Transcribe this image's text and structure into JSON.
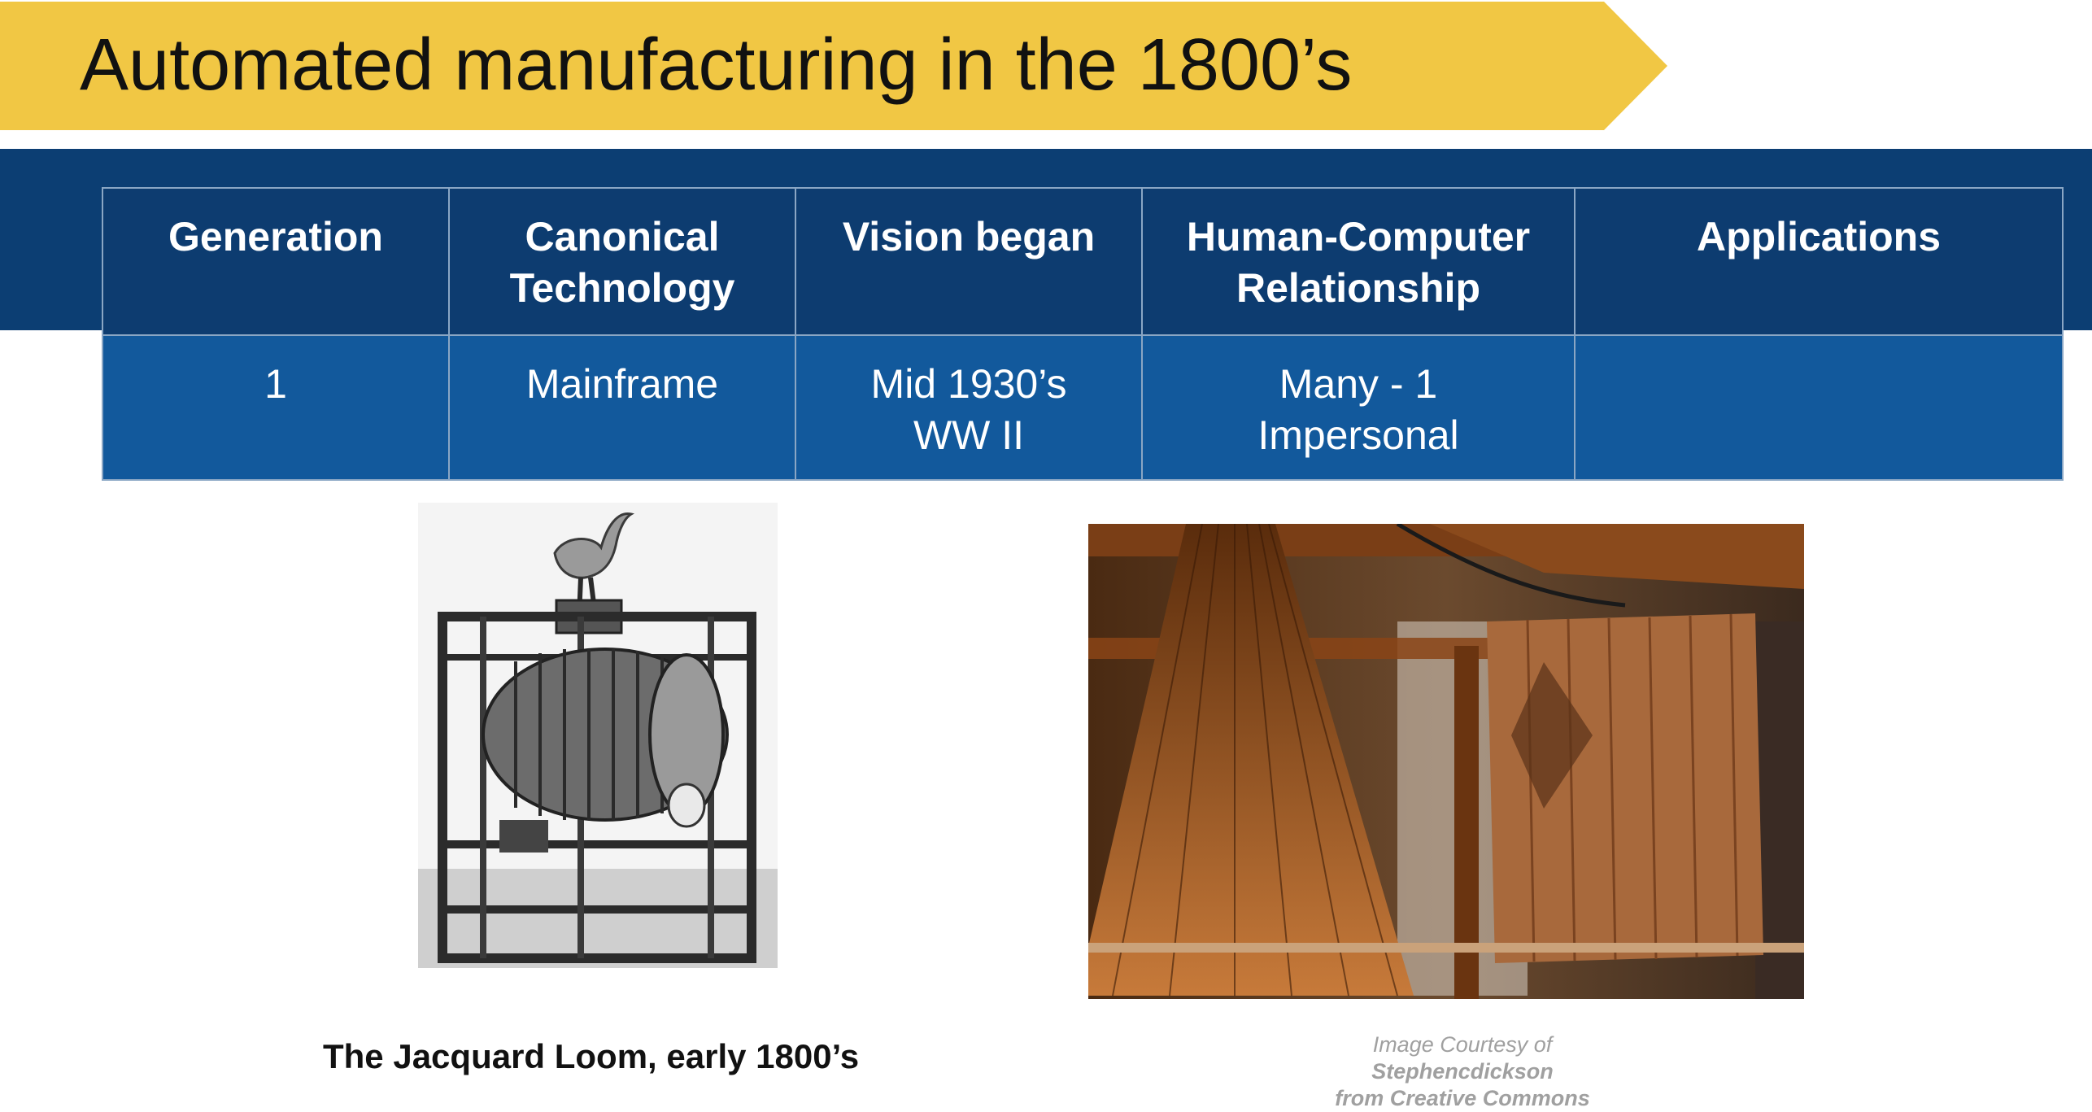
{
  "slide": {
    "title": "Automated manufacturing in the 1800’s"
  },
  "table": {
    "headers": [
      {
        "lines": [
          "Generation"
        ]
      },
      {
        "lines": [
          "Canonical",
          "Technology"
        ]
      },
      {
        "lines": [
          "Vision began"
        ]
      },
      {
        "lines": [
          "Human-Computer",
          "Relationship"
        ]
      },
      {
        "lines": [
          "Applications"
        ]
      }
    ],
    "rows": [
      {
        "cells": [
          {
            "lines": [
              "1"
            ]
          },
          {
            "lines": [
              "Mainframe"
            ]
          },
          {
            "lines": [
              "Mid 1930’s",
              "WW II"
            ]
          },
          {
            "lines": [
              "Many - 1",
              "Impersonal"
            ]
          },
          {
            "lines": [
              ""
            ]
          }
        ]
      }
    ]
  },
  "images": {
    "left_caption": "The Jacquard Loom, early 1800’s",
    "credit_prefix": "Image Courtesy of",
    "credit_author": "Stephencdickson",
    "credit_source": "from Creative Commons"
  },
  "colors": {
    "ribbon": "#f1c744",
    "band": "#0c3e73",
    "header_cell": "#0d3c70",
    "body_cell": "#12599c"
  }
}
